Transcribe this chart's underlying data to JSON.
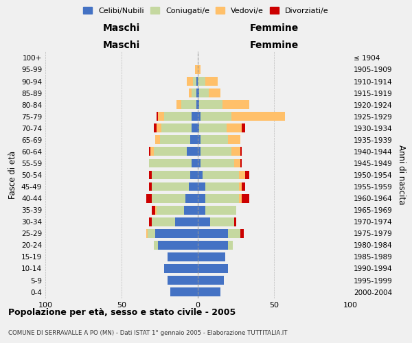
{
  "age_groups": [
    "0-4",
    "5-9",
    "10-14",
    "15-19",
    "20-24",
    "25-29",
    "30-34",
    "35-39",
    "40-44",
    "45-49",
    "50-54",
    "55-59",
    "60-64",
    "65-69",
    "70-74",
    "75-79",
    "80-84",
    "85-89",
    "90-94",
    "95-99",
    "100+"
  ],
  "birth_years": [
    "2000-2004",
    "1995-1999",
    "1990-1994",
    "1985-1989",
    "1980-1984",
    "1975-1979",
    "1970-1974",
    "1965-1969",
    "1960-1964",
    "1955-1959",
    "1950-1954",
    "1945-1949",
    "1940-1944",
    "1935-1939",
    "1930-1934",
    "1925-1929",
    "1920-1924",
    "1915-1919",
    "1910-1914",
    "1905-1909",
    "≤ 1904"
  ],
  "male": {
    "celibi": [
      18,
      20,
      22,
      20,
      26,
      28,
      15,
      9,
      8,
      6,
      5,
      4,
      7,
      5,
      4,
      4,
      1,
      1,
      1,
      0,
      0
    ],
    "coniugati": [
      0,
      0,
      0,
      0,
      3,
      5,
      15,
      18,
      22,
      24,
      25,
      28,
      22,
      20,
      20,
      18,
      10,
      3,
      2,
      0,
      0
    ],
    "vedovi": [
      0,
      0,
      0,
      0,
      0,
      1,
      0,
      1,
      0,
      0,
      0,
      0,
      2,
      3,
      3,
      4,
      3,
      2,
      4,
      2,
      0
    ],
    "divorziati": [
      0,
      0,
      0,
      0,
      0,
      0,
      2,
      2,
      4,
      2,
      2,
      0,
      1,
      0,
      2,
      1,
      0,
      0,
      0,
      0,
      0
    ]
  },
  "female": {
    "nubili": [
      15,
      17,
      20,
      18,
      20,
      20,
      8,
      5,
      5,
      5,
      3,
      2,
      2,
      2,
      1,
      2,
      1,
      1,
      0,
      0,
      0
    ],
    "coniugate": [
      0,
      0,
      0,
      0,
      3,
      8,
      16,
      20,
      22,
      22,
      24,
      22,
      20,
      18,
      18,
      20,
      15,
      6,
      5,
      0,
      0
    ],
    "vedove": [
      0,
      0,
      0,
      0,
      0,
      0,
      0,
      0,
      2,
      2,
      4,
      4,
      6,
      8,
      10,
      35,
      18,
      8,
      8,
      2,
      0
    ],
    "divorziate": [
      0,
      0,
      0,
      0,
      0,
      2,
      1,
      0,
      5,
      2,
      3,
      1,
      1,
      0,
      2,
      0,
      0,
      0,
      0,
      0,
      0
    ]
  },
  "colors": {
    "celibi": "#4472C4",
    "coniugati": "#c5d8a0",
    "vedovi": "#ffc06a",
    "divorziati": "#cc0000"
  },
  "title": "Popolazione per età, sesso e stato civile - 2005",
  "subtitle": "COMUNE DI SERRAVALLE A PO (MN) - Dati ISTAT 1° gennaio 2005 - Elaborazione TUTTITALIA.IT",
  "xlabel_left": "Maschi",
  "xlabel_right": "Femmine",
  "ylabel_left": "Fasce di età",
  "ylabel_right": "Anni di nascita",
  "xlim": 100,
  "legend_labels": [
    "Celibi/Nubili",
    "Coniugati/e",
    "Vedovi/e",
    "Divorziati/e"
  ],
  "background_color": "#f0f0f0"
}
